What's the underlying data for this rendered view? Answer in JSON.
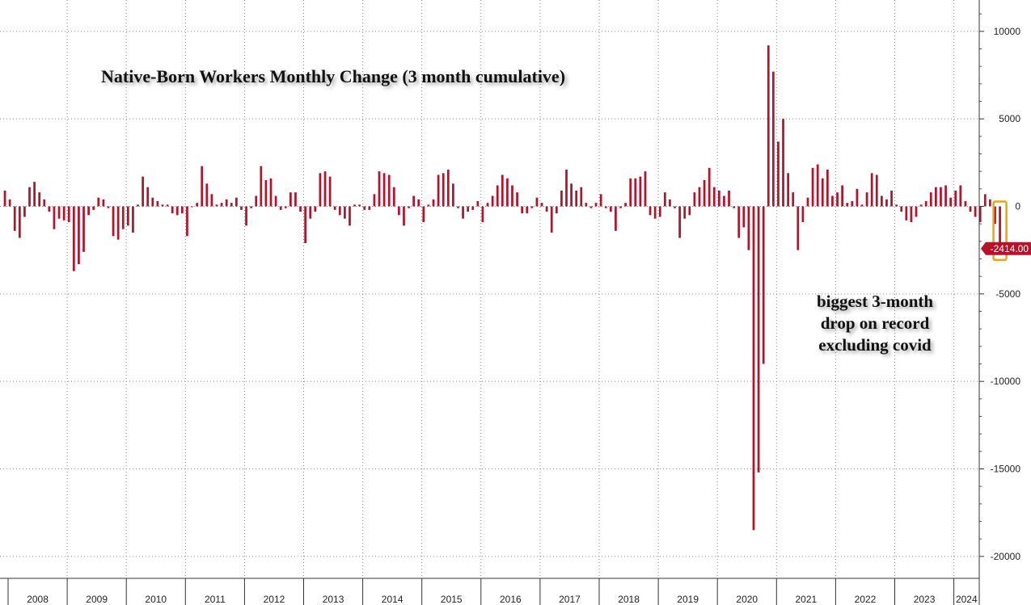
{
  "chart_data": {
    "type": "bar",
    "title": "Native-Born Workers Monthly Change (3 month cumulative)",
    "annotation": [
      "biggest 3-month",
      "drop on record",
      "excluding covid"
    ],
    "last_value_label": "-2414.00",
    "x_tick_labels": [
      "2008",
      "2009",
      "2010",
      "2011",
      "2012",
      "2013",
      "2014",
      "2015",
      "2016",
      "2017",
      "2018",
      "2019",
      "2020",
      "2021",
      "2022",
      "2023",
      "2024"
    ],
    "y_tick_labels": [
      "10000",
      "5000",
      "0",
      "-5000",
      "-10000",
      "-15000",
      "-20000"
    ],
    "y_ticks": [
      10000,
      5000,
      0,
      -5000,
      -10000,
      -15000,
      -20000
    ],
    "ylim": [
      -21000,
      11600
    ],
    "grid": true,
    "colors": {
      "bar": "#b5132b",
      "highlight": "#f0a30a",
      "label_bg": "#b5132b",
      "grid": "#888888"
    },
    "start_year": 2008,
    "highlight_last": true,
    "values": [
      900,
      400,
      -1400,
      -1800,
      -600,
      1100,
      1400,
      800,
      400,
      -300,
      -1300,
      -700,
      -800,
      -900,
      -3700,
      -3300,
      -2600,
      -500,
      -200,
      500,
      400,
      -100,
      -1700,
      -1900,
      -1300,
      -1100,
      -1500,
      100,
      1700,
      1100,
      500,
      300,
      100,
      100,
      -400,
      -500,
      -400,
      -1700,
      0,
      200,
      2300,
      1300,
      700,
      100,
      200,
      400,
      200,
      500,
      -200,
      -1100,
      -100,
      600,
      2300,
      1500,
      1600,
      600,
      -200,
      -100,
      800,
      800,
      -300,
      -2100,
      -700,
      -300,
      1900,
      2000,
      1700,
      -200,
      -500,
      -700,
      -1100,
      100,
      100,
      -200,
      -200,
      700,
      2000,
      1900,
      1800,
      1100,
      -500,
      -1100,
      -100,
      600,
      400,
      -900,
      100,
      400,
      1800,
      1900,
      2100,
      1300,
      -100,
      -700,
      -300,
      -200,
      300,
      -900,
      200,
      600,
      1200,
      1800,
      1600,
      1200,
      800,
      -400,
      -400,
      -100,
      500,
      200,
      -300,
      -1500,
      -400,
      900,
      2100,
      1300,
      900,
      1100,
      200,
      -100,
      200,
      700,
      -100,
      -300,
      -1400,
      -100,
      200,
      1600,
      1600,
      1700,
      2000,
      -500,
      -700,
      -600,
      800,
      400,
      -100,
      -1800,
      -700,
      -500,
      800,
      1100,
      1500,
      2200,
      1100,
      900,
      600,
      900,
      -100,
      -1800,
      -1200,
      -2500,
      -18500,
      -15200,
      -9000,
      9200,
      7700,
      3700,
      5000,
      1900,
      800,
      -2500,
      -900,
      500,
      2200,
      2400,
      1600,
      2100,
      600,
      800,
      1200,
      200,
      300,
      1000,
      100,
      800,
      1900,
      1800,
      600,
      400,
      900,
      100,
      -300,
      -800,
      -900,
      -600,
      100,
      300,
      800,
      1100,
      1100,
      1200,
      500,
      900,
      1200,
      300,
      -300,
      -600,
      -900,
      700,
      400,
      -1000,
      -2414
    ]
  }
}
